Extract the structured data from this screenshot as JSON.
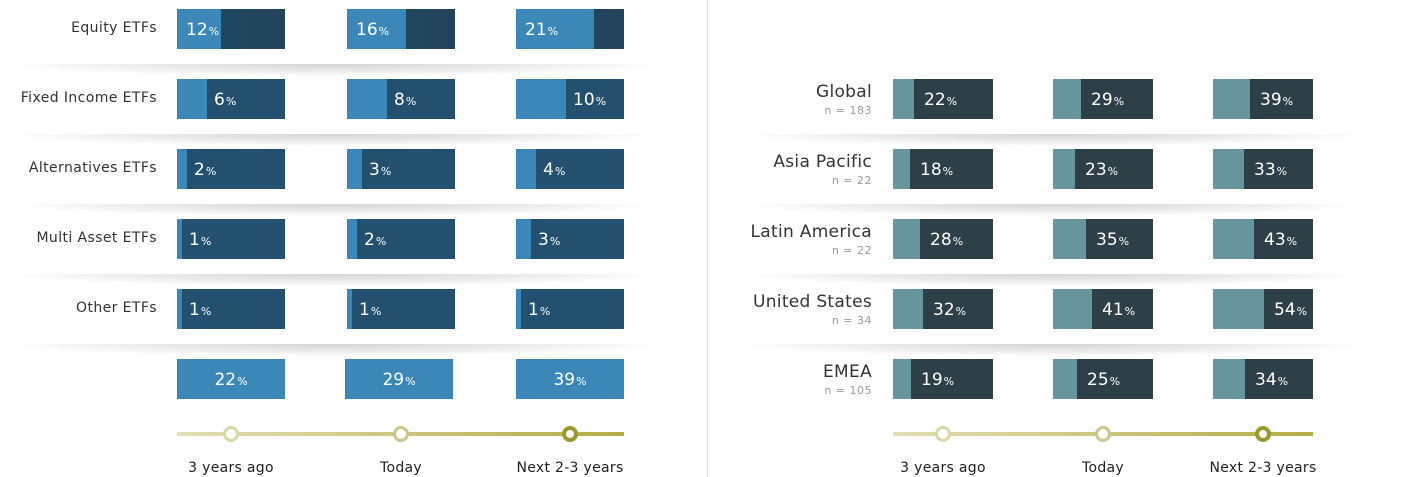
{
  "chart_data": [
    {
      "type": "bar",
      "categories": [
        "Equity ETFs",
        "Fixed Income ETFs",
        "Alternatives ETFs",
        "Multi Asset ETFs",
        "Other ETFs"
      ],
      "periods": [
        "3 years ago",
        "Today",
        "Next 2-3 years"
      ],
      "unit": "%",
      "series": [
        {
          "values": [
            12,
            6,
            2,
            1,
            1
          ],
          "totals": 22
        },
        {
          "values": [
            16,
            8,
            3,
            2,
            1
          ],
          "totals": 29
        },
        {
          "values": [
            21,
            10,
            4,
            3,
            1
          ],
          "totals": 39
        }
      ],
      "colors": {
        "fill": "#3b87b8",
        "base": "#23506e",
        "equity_base": "#23435a"
      }
    },
    {
      "type": "bar",
      "categories": [
        "Global",
        "Asia Pacific",
        "Latin America",
        "United States",
        "EMEA"
      ],
      "sample_sizes": [
        "n = 183",
        "n = 22",
        "n = 22",
        "n = 34",
        "n = 105"
      ],
      "periods": [
        "3 years ago",
        "Today",
        "Next 2-3 years"
      ],
      "unit": "%",
      "series": [
        {
          "values": [
            22,
            18,
            28,
            32,
            19
          ]
        },
        {
          "values": [
            29,
            23,
            35,
            41,
            25
          ]
        },
        {
          "values": [
            39,
            33,
            43,
            54,
            34
          ]
        }
      ],
      "colors": {
        "fill": "#66959d",
        "base": "#2d3f47"
      }
    }
  ],
  "timeline": {
    "labels": [
      "3 years ago",
      "Today",
      "Next 2-3 years"
    ],
    "track_colors": [
      "#e3deb6",
      "#b6ad45"
    ],
    "dot_colors": [
      "#dcd7a7",
      "#cdc68a",
      "#9d982c"
    ]
  },
  "percent_sign": "%"
}
